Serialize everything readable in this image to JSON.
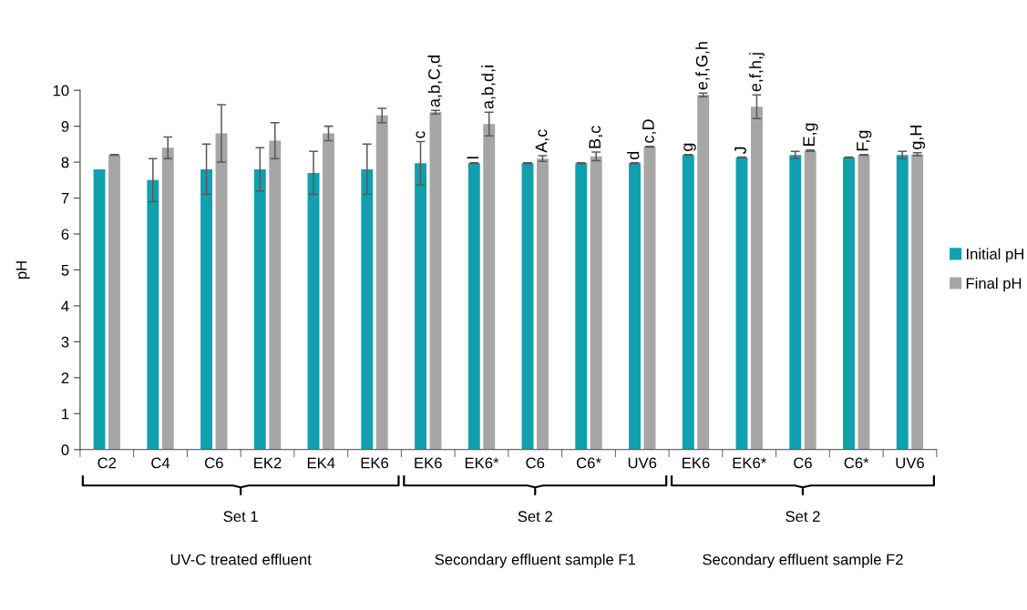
{
  "chart_data": {
    "type": "bar",
    "ylabel": "pH",
    "categories": [
      "C2",
      "C4",
      "C6",
      "EK2",
      "EK4",
      "EK6",
      "EK6",
      "EK6*",
      "C6",
      "C6*",
      "UV6",
      "EK6",
      "EK6*",
      "C6",
      "C6*",
      "UV6"
    ],
    "series": [
      {
        "name": "Initial pH",
        "color": "#11a0b0",
        "values": [
          7.8,
          7.5,
          7.8,
          7.8,
          7.7,
          7.8,
          7.97,
          7.97,
          7.97,
          7.97,
          7.97,
          8.2,
          8.13,
          8.2,
          8.13,
          8.2
        ],
        "errors": [
          null,
          0.6,
          0.7,
          0.6,
          0.6,
          0.7,
          0.6,
          0.01,
          0.01,
          0.01,
          0.01,
          0.01,
          0.01,
          0.1,
          0.01,
          0.1
        ],
        "value_labels": [
          null,
          null,
          null,
          null,
          null,
          null,
          "c",
          "I",
          null,
          null,
          "d",
          "g",
          "J",
          null,
          null,
          null
        ]
      },
      {
        "name": "Final pH",
        "color": "#a6a6a6",
        "values": [
          8.2,
          8.4,
          8.8,
          8.6,
          8.8,
          9.3,
          9.39,
          9.06,
          8.1,
          8.16,
          8.43,
          9.87,
          9.54,
          8.32,
          8.2,
          8.22
        ],
        "errors": [
          0.01,
          0.3,
          0.8,
          0.5,
          0.2,
          0.2,
          0.05,
          0.33,
          0.08,
          0.12,
          0.01,
          0.05,
          0.33,
          0.02,
          0.01,
          0.04
        ],
        "value_labels": [
          null,
          null,
          null,
          null,
          null,
          null,
          "a,b,C,d",
          "a,b,d,i",
          "A,c",
          "B,c",
          "c,D",
          "e,f,G,h",
          "e,f,h,j",
          "E,g",
          "F,g",
          "g,H"
        ]
      }
    ],
    "ylim": [
      0,
      10
    ],
    "yticks": [
      0,
      1,
      2,
      3,
      4,
      5,
      6,
      7,
      8,
      9,
      10
    ],
    "grid": false,
    "legend": "right",
    "annotations": [
      "Set 1",
      "Set 2",
      "Set 2",
      "UV-C treated effluent",
      "Secondary effluent sample F1",
      "Secondary effluent sample F2"
    ]
  }
}
